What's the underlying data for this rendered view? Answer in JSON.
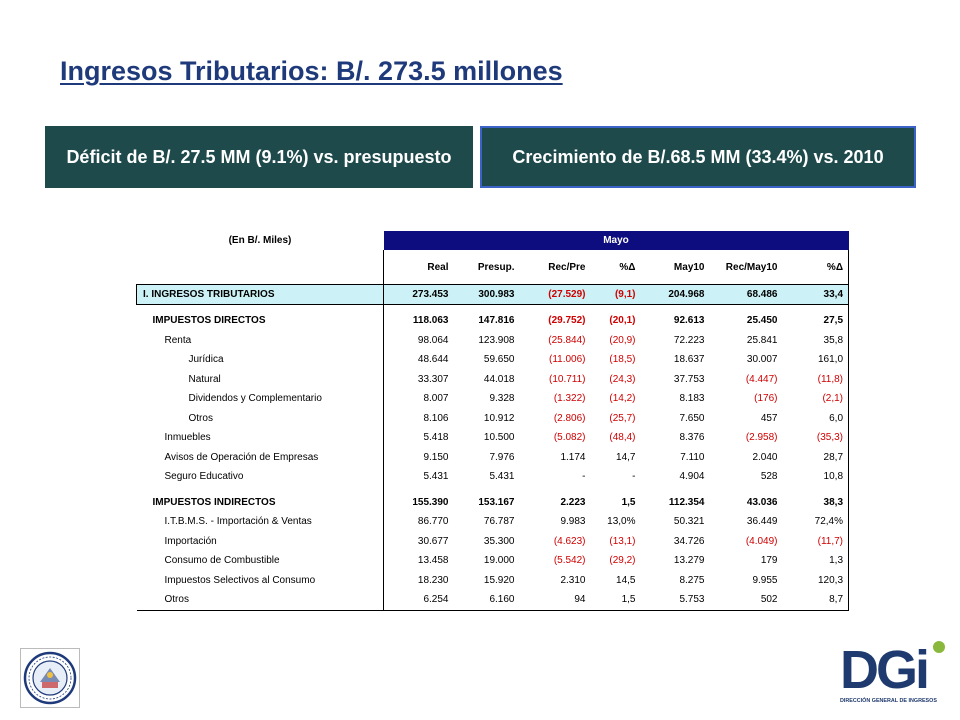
{
  "title": "Ingresos Tributarios:  B/. 273.5 millones",
  "banners": {
    "deficit": "Déficit de B/. 27.5 MM (9.1%) vs. presupuesto",
    "growth": "Crecimiento de B/.68.5 MM (33.4%) vs. 2010"
  },
  "table": {
    "unit_label": "(En B/. Miles)",
    "period_label": "Mayo",
    "columns": [
      "Real",
      "Presup.",
      "Rec/Pre",
      "%Δ",
      "May10",
      "Rec/May10",
      "%Δ"
    ],
    "total": {
      "label": "I. INGRESOS TRIBUTARIOS",
      "values": [
        "273.453",
        "300.983",
        "(27.529)",
        "(9,1)",
        "204.968",
        "68.486",
        "33,4"
      ]
    },
    "directos": {
      "label": "IMPUESTOS DIRECTOS",
      "values": [
        "118.063",
        "147.816",
        "(29.752)",
        "(20,1)",
        "92.613",
        "25.450",
        "27,5"
      ],
      "rows": [
        {
          "label": "Renta",
          "level": 1,
          "values": [
            "98.064",
            "123.908",
            "(25.844)",
            "(20,9)",
            "72.223",
            "25.841",
            "35,8"
          ]
        },
        {
          "label": "Jurídica",
          "level": 2,
          "values": [
            "48.644",
            "59.650",
            "(11.006)",
            "(18,5)",
            "18.637",
            "30.007",
            "161,0"
          ]
        },
        {
          "label": "Natural",
          "level": 2,
          "values": [
            "33.307",
            "44.018",
            "(10.711)",
            "(24,3)",
            "37.753",
            "(4.447)",
            "(11,8)"
          ]
        },
        {
          "label": "Dividendos y Complementario",
          "level": 2,
          "values": [
            "8.007",
            "9.328",
            "(1.322)",
            "(14,2)",
            "8.183",
            "(176)",
            "(2,1)"
          ]
        },
        {
          "label": "Otros",
          "level": 2,
          "values": [
            "8.106",
            "10.912",
            "(2.806)",
            "(25,7)",
            "7.650",
            "457",
            "6,0"
          ]
        },
        {
          "label": "Inmuebles",
          "level": 1,
          "values": [
            "5.418",
            "10.500",
            "(5.082)",
            "(48,4)",
            "8.376",
            "(2.958)",
            "(35,3)"
          ]
        },
        {
          "label": "Avisos de Operación de Empresas",
          "level": 1,
          "values": [
            "9.150",
            "7.976",
            "1.174",
            "14,7",
            "7.110",
            "2.040",
            "28,7"
          ]
        },
        {
          "label": "Seguro Educativo",
          "level": 1,
          "values": [
            "5.431",
            "5.431",
            "-",
            "-",
            "4.904",
            "528",
            "10,8"
          ]
        }
      ]
    },
    "indirectos": {
      "label": "IMPUESTOS INDIRECTOS",
      "values": [
        "155.390",
        "153.167",
        "2.223",
        "1,5",
        "112.354",
        "43.036",
        "38,3"
      ],
      "rows": [
        {
          "label": "I.T.B.M.S. - Importación & Ventas",
          "level": 1,
          "values": [
            "86.770",
            "76.787",
            "9.983",
            "13,0%",
            "50.321",
            "36.449",
            "72,4%"
          ]
        },
        {
          "label": "Importación",
          "level": 1,
          "values": [
            "30.677",
            "35.300",
            "(4.623)",
            "(13,1)",
            "34.726",
            "(4.049)",
            "(11,7)"
          ]
        },
        {
          "label": "Consumo de Combustible",
          "level": 1,
          "values": [
            "13.458",
            "19.000",
            "(5.542)",
            "(29,2)",
            "13.279",
            "179",
            "1,3"
          ]
        },
        {
          "label": "Impuestos Selectivos al Consumo",
          "level": 1,
          "values": [
            "18.230",
            "15.920",
            "2.310",
            "14,5",
            "8.275",
            "9.955",
            "120,3"
          ]
        },
        {
          "label": "Otros",
          "level": 1,
          "values": [
            "6.254",
            "6.160",
            "94",
            "1,5",
            "5.753",
            "502",
            "8,7"
          ]
        }
      ]
    }
  },
  "logos": {
    "left": "ministerio-economia-finanzas-seal",
    "right": {
      "text": "DGi",
      "subtitle": "DIRECCIÓN GENERAL DE INGRESOS",
      "dark_color": "#1f3a6e",
      "accent_color": "#8ab83c"
    }
  }
}
